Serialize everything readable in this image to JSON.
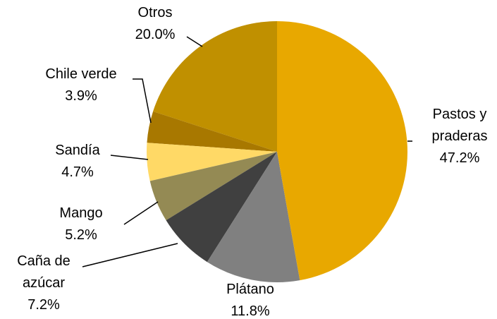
{
  "chart_data": {
    "type": "pie",
    "categories": [
      "Pastos y\npraderas",
      "Plátano",
      "Caña de\nazúcar",
      "Mango",
      "Sandía",
      "Chile verde",
      "Otros"
    ],
    "values": [
      47.2,
      11.8,
      7.2,
      5.2,
      4.7,
      3.9,
      20.0
    ],
    "value_labels": [
      "47.2%",
      "11.8%",
      "7.2%",
      "5.2%",
      "4.7%",
      "3.9%",
      "20.0%"
    ],
    "colors": [
      "#E8A800",
      "#808080",
      "#404040",
      "#948A54",
      "#FFD966",
      "#A87800",
      "#C09000"
    ]
  }
}
